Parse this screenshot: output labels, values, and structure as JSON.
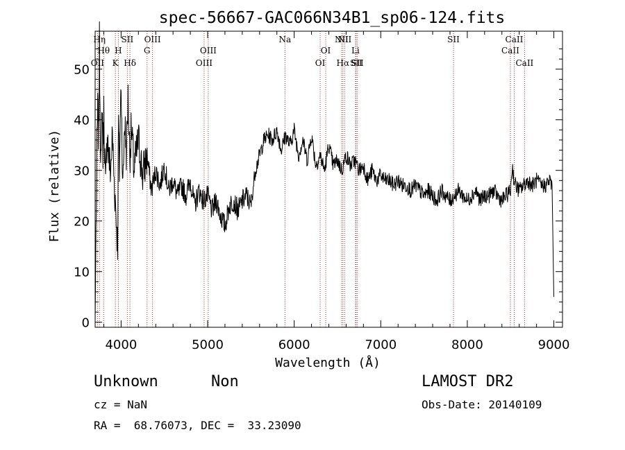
{
  "chart_data": {
    "type": "line",
    "title": "spec-56667-GAC066N34B1_sp06-124.fits",
    "xlabel": "Wavelength (Å)",
    "ylabel": "Flux (relative)",
    "xlim": [
      3700,
      9100
    ],
    "ylim": [
      -1,
      57.5
    ],
    "xticks": [
      4000,
      5000,
      6000,
      7000,
      8000,
      9000
    ],
    "yticks": [
      0,
      10,
      20,
      30,
      40,
      50
    ],
    "grid": false,
    "legend": "none",
    "line_color": "#000000",
    "marker_line_color": "#a0302c",
    "series": [
      {
        "x": [
          3700,
          3710,
          3720,
          3730,
          3740,
          3750,
          3760,
          3770,
          3780,
          3790,
          3800,
          3820,
          3840,
          3860,
          3880,
          3900,
          3920,
          3940,
          3960,
          3970,
          3980,
          4000,
          4020,
          4040,
          4060,
          4080,
          4100,
          4120,
          4150,
          4200,
          4250,
          4300,
          4350,
          4400,
          4450,
          4500,
          4550,
          4600,
          4650,
          4700,
          4750,
          4800,
          4850,
          4900,
          4950,
          5000,
          5050,
          5100,
          5150,
          5200,
          5250,
          5300,
          5350,
          5400,
          5450,
          5500,
          5550,
          5600,
          5650,
          5700,
          5750,
          5800,
          5850,
          5900,
          5950,
          6000,
          6050,
          6100,
          6150,
          6200,
          6250,
          6300,
          6350,
          6400,
          6450,
          6500,
          6550,
          6600,
          6650,
          6700,
          6750,
          6800,
          6850,
          6900,
          6950,
          7000,
          7050,
          7100,
          7150,
          7200,
          7250,
          7300,
          7350,
          7400,
          7450,
          7500,
          7550,
          7600,
          7650,
          7700,
          7750,
          7800,
          7850,
          7900,
          7950,
          8000,
          8050,
          8100,
          8150,
          8200,
          8250,
          8300,
          8350,
          8400,
          8450,
          8500,
          8520,
          8540,
          8560,
          8600,
          8650,
          8700,
          8750,
          8800,
          8850,
          8900,
          8950,
          8980,
          9000
        ],
        "y": [
          0,
          18,
          34,
          42,
          36,
          55,
          38,
          30,
          44,
          33,
          42,
          26,
          38,
          32,
          30,
          37,
          28,
          22,
          15,
          40,
          30,
          48,
          26,
          40,
          34,
          44,
          33,
          38,
          30,
          36,
          29,
          33,
          26,
          30,
          27,
          31,
          26,
          28,
          25,
          27,
          25,
          28,
          23,
          26,
          24,
          25,
          22,
          24,
          21,
          19,
          23,
          24,
          22,
          24,
          25,
          23,
          30,
          33,
          36,
          37,
          36,
          38,
          34,
          37,
          35,
          38,
          33,
          36,
          32,
          37,
          31,
          33,
          30,
          35,
          31,
          32,
          30,
          33,
          31,
          32,
          30,
          31,
          28,
          30,
          28,
          29,
          28,
          28,
          27,
          28,
          27,
          27,
          26,
          27,
          26,
          25,
          26,
          25,
          24,
          26,
          25,
          24,
          25,
          26,
          25,
          24,
          25,
          26,
          24,
          25,
          25,
          26,
          25,
          24,
          25,
          26,
          31,
          28,
          27,
          26,
          27,
          28,
          27,
          28,
          27,
          27,
          28,
          27,
          5
        ]
      }
    ],
    "lines": [
      {
        "x": 3727,
        "label": "OII",
        "row": 3
      },
      {
        "x": 3750,
        "label": "Hη",
        "row": 1
      },
      {
        "x": 3798,
        "label": "Hθ",
        "row": 2
      },
      {
        "x": 3934,
        "label": "K",
        "row": 3
      },
      {
        "x": 3968,
        "label": "H",
        "row": 2
      },
      {
        "x": 4072,
        "label": "SII",
        "row": 1
      },
      {
        "x": 4102,
        "label": "Hδ",
        "row": 3
      },
      {
        "x": 4300,
        "label": "G",
        "row": 2
      },
      {
        "x": 4363,
        "label": "OIII",
        "row": 1
      },
      {
        "x": 4959,
        "label": "OIII",
        "row": 3
      },
      {
        "x": 5007,
        "label": "OIII",
        "row": 2
      },
      {
        "x": 5893,
        "label": "Na",
        "row": 1
      },
      {
        "x": 6300,
        "label": "OI",
        "row": 3
      },
      {
        "x": 6364,
        "label": "OI",
        "row": 2
      },
      {
        "x": 6548,
        "label": "NII",
        "row": 1
      },
      {
        "x": 6563,
        "label": "Hα",
        "row": 3
      },
      {
        "x": 6583,
        "label": "NII",
        "row": 1
      },
      {
        "x": 6708,
        "label": "Li",
        "row": 2
      },
      {
        "x": 6716,
        "label": "SII",
        "row": 3
      },
      {
        "x": 6731,
        "label": "SII",
        "row": 3
      },
      {
        "x": 7840,
        "label": "SII",
        "row": 1
      },
      {
        "x": 8498,
        "label": "CaII",
        "row": 2
      },
      {
        "x": 8542,
        "label": "CaII",
        "row": 1
      },
      {
        "x": 8662,
        "label": "CaII",
        "row": 3
      }
    ]
  },
  "info": {
    "class": "Unknown",
    "subclass": "Non",
    "survey": "LAMOST DR2",
    "cz": "cz = NaN",
    "obs_date": "Obs-Date: 20140109",
    "radec": "RA =  68.76073, DEC =  33.23090"
  }
}
